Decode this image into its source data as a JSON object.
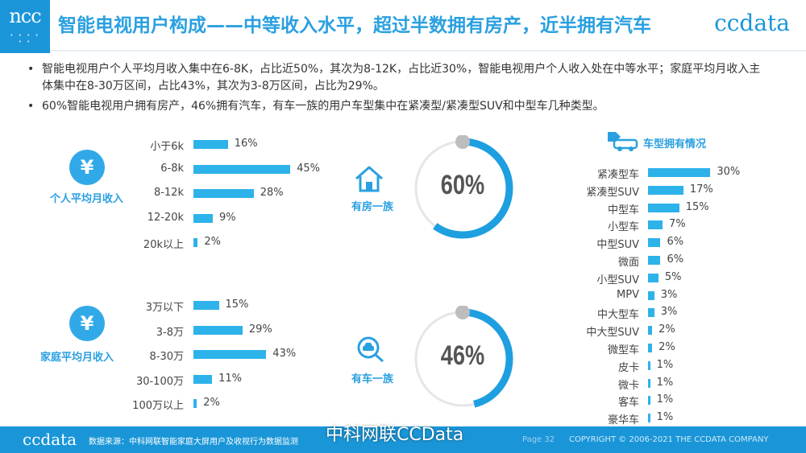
{
  "header": {
    "logo": "ncc",
    "logo_dots": "• • • • • •",
    "title": "智能电视用户构成——中等收入水平，超过半数拥有房产，近半拥有汽车",
    "brand": "ccdata"
  },
  "bullets": [
    "智能电视用户个人平均月收入集中在6-8K，占比近50%，其次为8-12K，占比近30%，智能电视用户个人收入处在中等水平；家庭平均月收入主体集中在8-30万区间，占比43%，其次为3-8万区间，占比为29%。",
    "60%智能电视用户拥有房产，46%拥有汽车，有车一族的用户车型集中在紧凑型/紧凑型SUV和中型车几种类型。"
  ],
  "bullet_marker": "•",
  "colors": {
    "accent": "#2aa0e0",
    "bar": "#2db2ea",
    "ring": "#1e9fe0",
    "ring_track": "#e6e6e6",
    "footer": "#1a96d8"
  },
  "sections": {
    "personal_income": {
      "label": "个人平均月收入",
      "icon_glyph": "¥",
      "icon": "yen-icon"
    },
    "family_income": {
      "label": "家庭平均月收入",
      "icon_glyph": "¥",
      "icon": "yen-icon"
    },
    "house": {
      "label": "有房一族",
      "icon": "house-icon"
    },
    "car": {
      "label": "有车一族",
      "icon": "car-search-icon"
    },
    "car_types": {
      "label": "车型拥有情况",
      "icon": "car-tag-icon"
    }
  },
  "chart_data": [
    {
      "type": "bar",
      "orientation": "horizontal",
      "title": "个人平均月收入",
      "categories": [
        "小于6k",
        "6-8k",
        "8-12k",
        "12-20k",
        "20k以上"
      ],
      "values": [
        16,
        45,
        28,
        9,
        2
      ],
      "value_labels": [
        "16%",
        "45%",
        "28%",
        "9%",
        "2%"
      ]
    },
    {
      "type": "bar",
      "orientation": "horizontal",
      "title": "家庭平均月收入",
      "categories": [
        "3万以下",
        "3-8万",
        "8-30万",
        "30-100万",
        "100万以上"
      ],
      "values": [
        15,
        29,
        43,
        11,
        2
      ],
      "value_labels": [
        "15%",
        "29%",
        "43%",
        "11%",
        "2%"
      ]
    },
    {
      "type": "pie",
      "title": "有房一族",
      "values": [
        60
      ],
      "value_label": "60%"
    },
    {
      "type": "pie",
      "title": "有车一族",
      "values": [
        46
      ],
      "value_label": "46%"
    },
    {
      "type": "bar",
      "orientation": "horizontal",
      "title": "车型拥有情况",
      "categories": [
        "紧凑型车",
        "紧凑型SUV",
        "中型车",
        "小型车",
        "中型SUV",
        "微面",
        "小型SUV",
        "MPV",
        "中大型车",
        "中大型SUV",
        "微型车",
        "皮卡",
        "微卡",
        "客车",
        "豪华车"
      ],
      "values": [
        30,
        17,
        15,
        7,
        6,
        6,
        5,
        3,
        3,
        2,
        2,
        1,
        1,
        1,
        1
      ],
      "value_labels": [
        "30%",
        "17%",
        "15%",
        "7%",
        "6%",
        "6%",
        "5%",
        "3%",
        "3%",
        "2%",
        "2%",
        "1%",
        "1%",
        "1%",
        "1%"
      ]
    }
  ],
  "footer": {
    "logo": "ccdata",
    "source": "数据来源：中科网联智能家庭大屏用户及收视行为数据监测",
    "page": "Page 32",
    "copyright": "COPYRIGHT © 2006-2021 THE CCDATA COMPANY",
    "watermark": "中科网联CCData"
  }
}
